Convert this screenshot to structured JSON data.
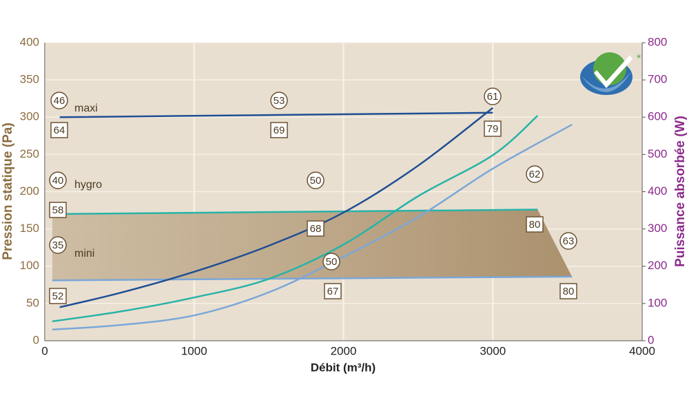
{
  "chart_data": {
    "type": "line",
    "xlabel": "Débit (m³/h)",
    "ylabel": "Pression statique (Pa)",
    "y2label": "Puissance absorbée (W)",
    "xlim": [
      0,
      4000
    ],
    "xticks": [
      0,
      1000,
      2000,
      3000,
      4000
    ],
    "ylim": [
      0,
      400
    ],
    "yticks": [
      0,
      50,
      100,
      150,
      200,
      250,
      300,
      350,
      400
    ],
    "y2lim": [
      0,
      800
    ],
    "y2ticks": [
      0,
      100,
      200,
      300,
      400,
      500,
      600,
      700,
      800
    ],
    "grid": true,
    "badge": "*",
    "series": [
      {
        "name": "maxi",
        "color": "#1f4e94",
        "axis": "y",
        "x": [
          100,
          3000
        ],
        "values": [
          300,
          306
        ],
        "circle_labels": [
          46,
          53,
          61
        ],
        "box_labels": [
          64,
          69,
          79
        ]
      },
      {
        "name": "hygro",
        "color": "#27b3a8",
        "axis": "y",
        "x": [
          50,
          3300
        ],
        "values": [
          170,
          176
        ],
        "circle_labels": [
          40,
          50,
          62
        ],
        "box_labels": [
          58,
          68,
          80
        ]
      },
      {
        "name": "mini",
        "color": "#7aa7d8",
        "axis": "y",
        "x": [
          50,
          3530
        ],
        "values": [
          81,
          86
        ],
        "circle_labels": [
          35,
          50,
          63
        ],
        "box_labels": [
          52,
          67,
          80
        ]
      },
      {
        "color": "#1f4e94",
        "axis": "y2",
        "x": [
          100,
          500,
          1000,
          1500,
          2000,
          2500,
          3000
        ],
        "values": [
          90,
          128,
          185,
          255,
          344,
          470,
          625
        ]
      },
      {
        "color": "#27b3a8",
        "axis": "y2",
        "x": [
          50,
          500,
          1000,
          1500,
          2000,
          2500,
          3000,
          3300
        ],
        "values": [
          52,
          78,
          116,
          166,
          258,
          388,
          498,
          604
        ]
      },
      {
        "color": "#7aa7d8",
        "axis": "y2",
        "x": [
          50,
          500,
          1000,
          1500,
          2000,
          2500,
          3000,
          3530
        ],
        "values": [
          30,
          42,
          68,
          130,
          225,
          332,
          462,
          580
        ]
      }
    ]
  }
}
